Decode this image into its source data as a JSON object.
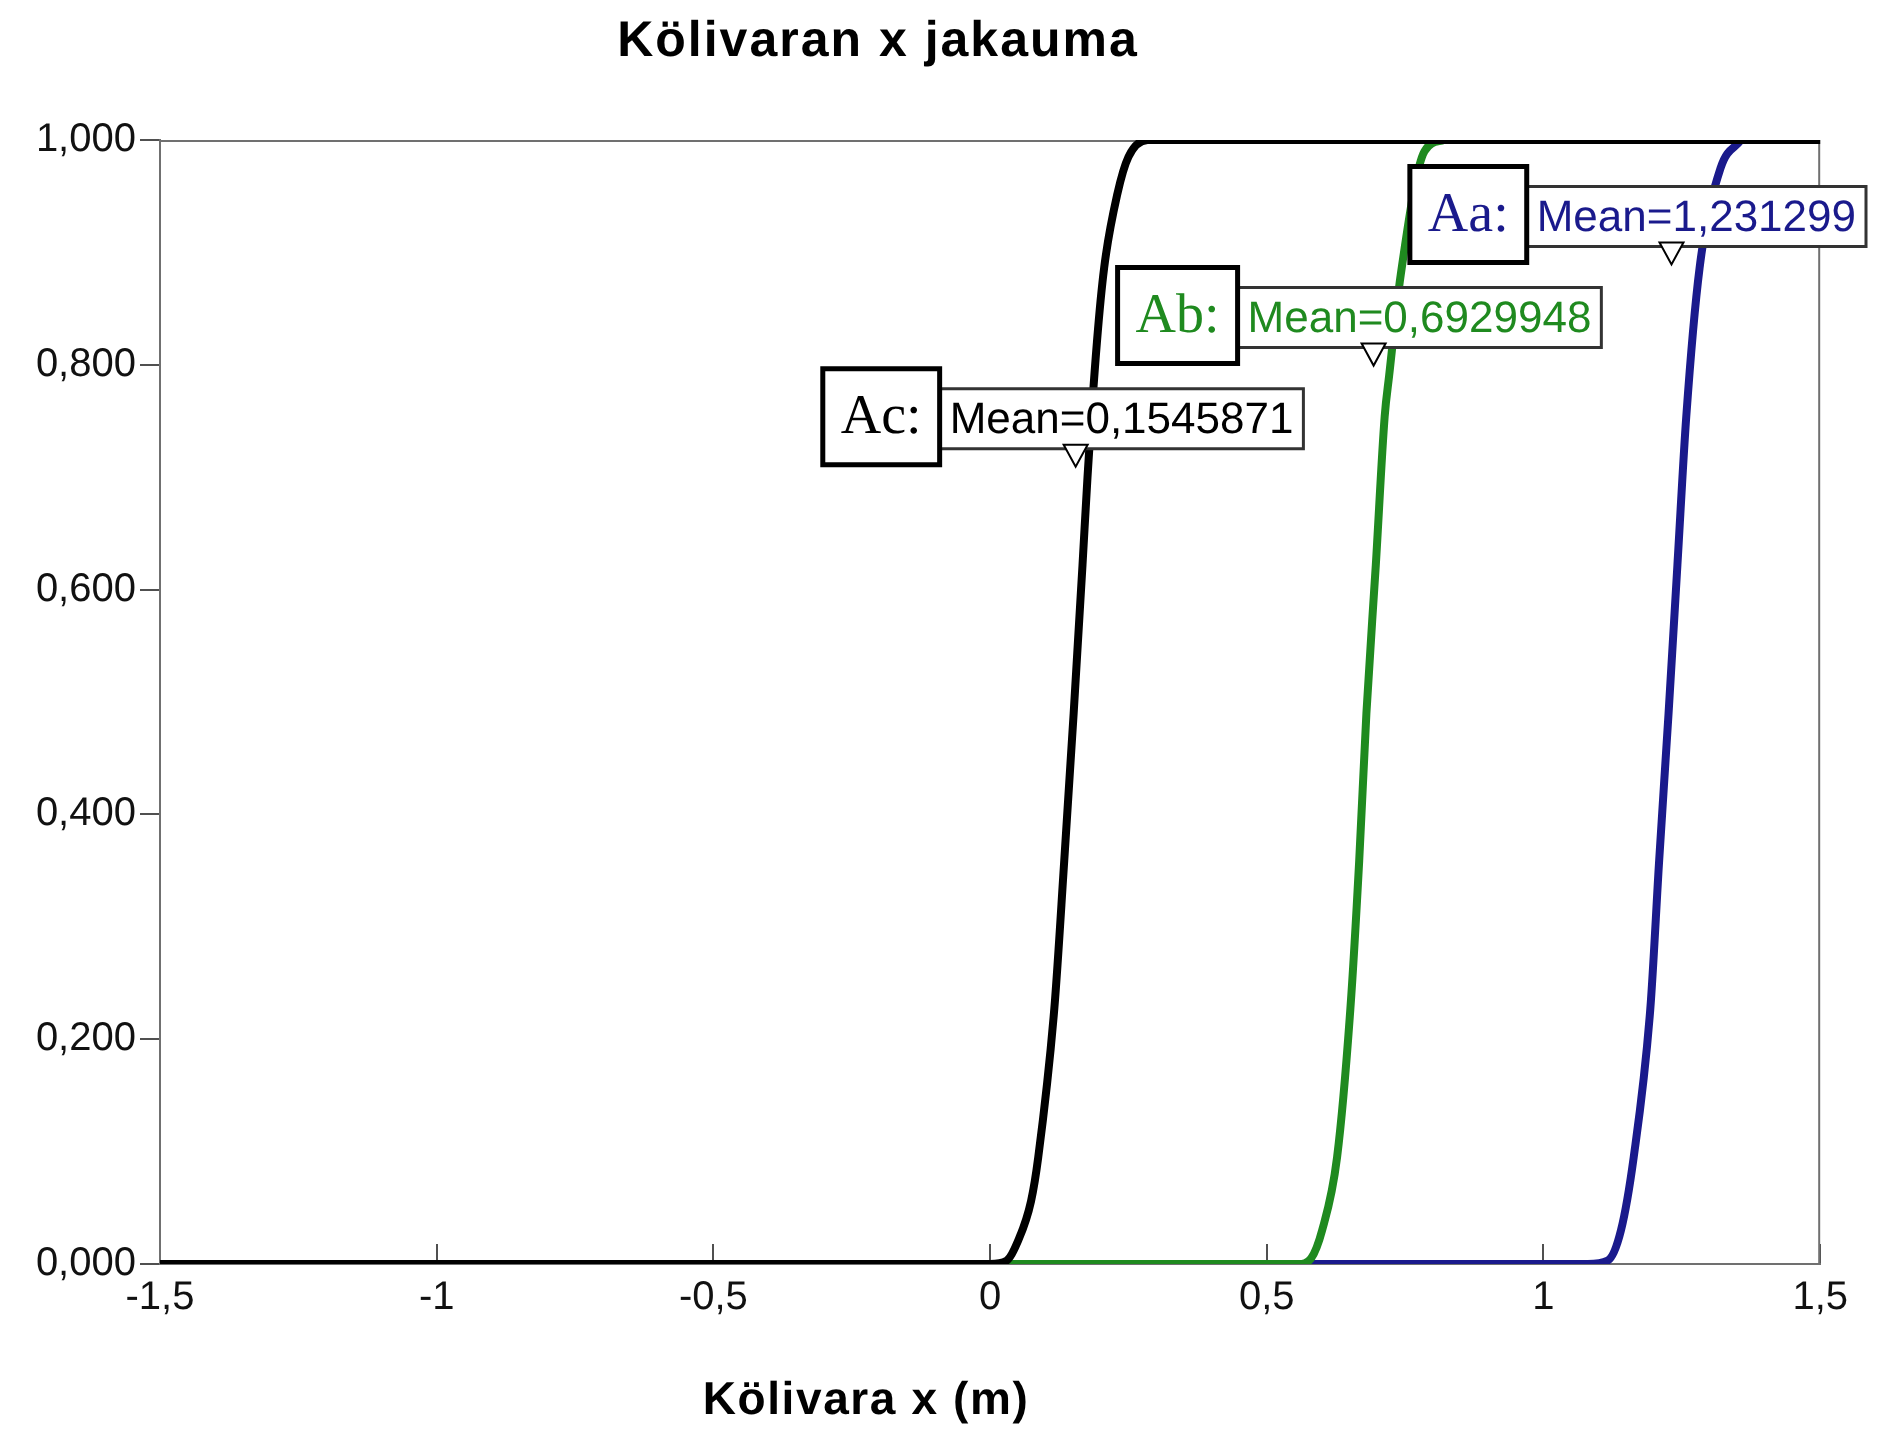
{
  "chart_data": {
    "type": "line",
    "title": "Kölivaran x jakauma",
    "xlabel": "Kölivara x (m)",
    "xlim": [
      -1.5,
      1.5
    ],
    "xticks": [
      {
        "value": -1.5,
        "label": "-1,5"
      },
      -1,
      {
        "value": -0.5,
        "label": "-0,5"
      },
      0,
      {
        "value": 0.5,
        "label": "0,5"
      },
      1,
      {
        "value": 1.5,
        "label": "1,5"
      }
    ],
    "ylim": [
      0,
      1
    ],
    "yticks": [
      {
        "value": 0,
        "label": "0,000"
      },
      {
        "value": 0.2,
        "label": "0,200"
      },
      {
        "value": 0.4,
        "label": "0,400"
      },
      {
        "value": 0.6,
        "label": "0,600"
      },
      {
        "value": 0.8,
        "label": "0,800"
      },
      {
        "value": 1,
        "label": "1,000"
      }
    ],
    "series": [
      {
        "name": "Aa:",
        "color": "#1a1a8c",
        "x": [
          0.56,
          1.08,
          1.116,
          1.14,
          1.163,
          1.193,
          1.209,
          1.226,
          1.242,
          1.258,
          1.282,
          1.32,
          1.357
        ],
        "values": [
          0,
          0,
          0.003,
          0.03,
          0.095,
          0.227,
          0.359,
          0.49,
          0.622,
          0.754,
          0.886,
          0.975,
          1
        ]
      },
      {
        "name": "Ab:",
        "color": "#1f8a1f",
        "x": [
          0.02,
          0.557,
          0.58,
          0.6,
          0.627,
          0.651,
          0.667,
          0.68,
          0.697,
          0.713,
          0.721,
          0.742,
          0.785,
          0.82
        ],
        "values": [
          0,
          0,
          0.005,
          0.03,
          0.095,
          0.227,
          0.359,
          0.49,
          0.622,
          0.754,
          0.79,
          0.88,
          0.99,
          1
        ]
      },
      {
        "name": "Ac:",
        "color": "#000000",
        "x": [
          -1.5,
          0.0,
          0.03,
          0.05,
          0.074,
          0.087,
          0.116,
          0.134,
          0.151,
          0.167,
          0.176,
          0.193,
          0.206,
          0.23,
          0.25,
          0.285,
          1.5
        ],
        "values": [
          0,
          0,
          0.003,
          0.02,
          0.056,
          0.095,
          0.227,
          0.359,
          0.49,
          0.622,
          0.7,
          0.82,
          0.886,
          0.952,
          0.985,
          1,
          1
        ]
      }
    ],
    "annotations": [
      {
        "text": "Mean=1,231299",
        "x": 1.231299,
        "y": 0.9
      },
      {
        "text": "Mean=0,6929948",
        "x": 0.6929948,
        "y": 0.81
      },
      {
        "text": "Mean=0,1545871",
        "x": 0.1545871,
        "y": 0.72
      }
    ]
  }
}
